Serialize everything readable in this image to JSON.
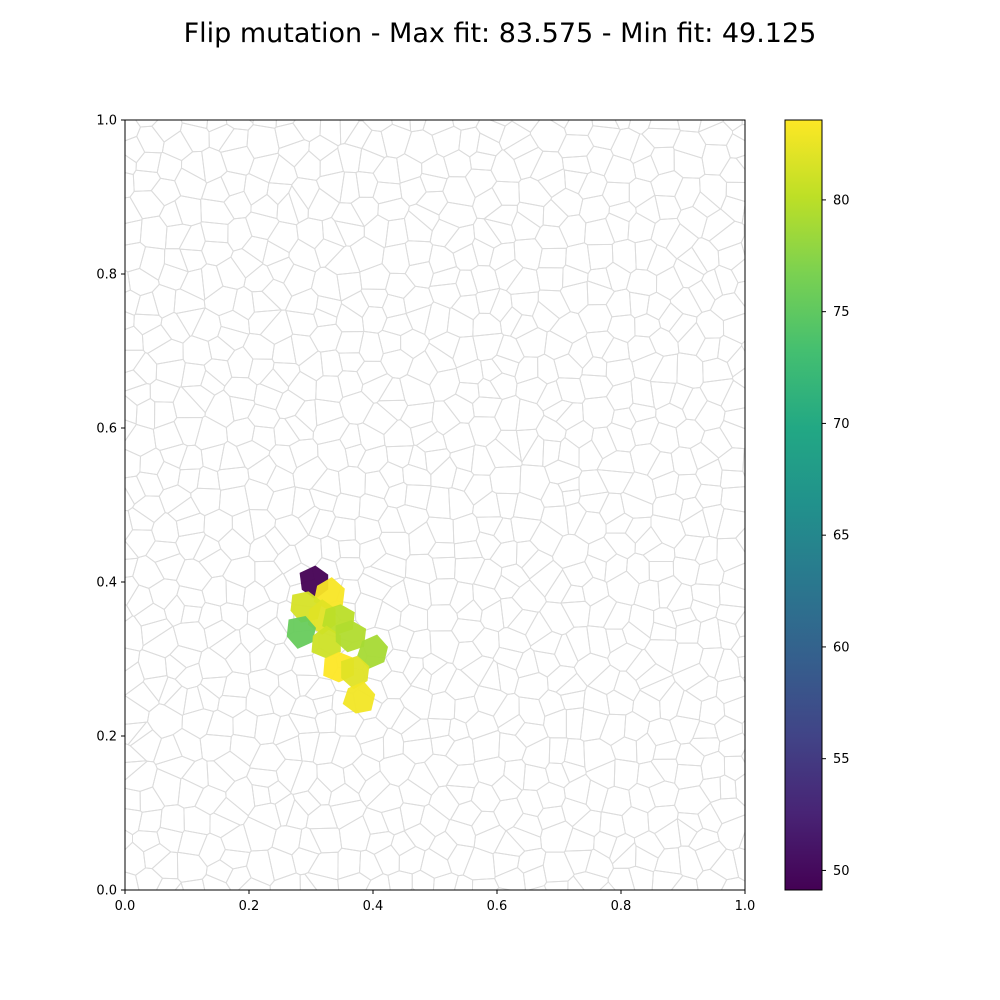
{
  "chart_data": {
    "type": "heatmap",
    "title": "Flip mutation - Max fit: 83.575 - Min fit: 49.125",
    "xlabel": "",
    "ylabel": "",
    "xlim": [
      0,
      1
    ],
    "ylim": [
      0,
      1
    ],
    "x_ticks": [
      "0.0",
      "0.2",
      "0.4",
      "0.6",
      "0.8",
      "1.0"
    ],
    "y_ticks": [
      "0.0",
      "0.2",
      "0.4",
      "0.6",
      "0.8",
      "1.0"
    ],
    "grid": false,
    "background_cells": "voronoi tessellation, light gray edges",
    "colormap": "viridis",
    "colorbar": {
      "range": [
        49.125,
        83.575
      ],
      "ticks": [
        "50",
        "55",
        "60",
        "65",
        "70",
        "75",
        "80"
      ],
      "placement": "right"
    },
    "cells": [
      {
        "x": 0.307,
        "y": 0.4,
        "value": 49.125
      },
      {
        "x": 0.33,
        "y": 0.383,
        "value": 83.3
      },
      {
        "x": 0.29,
        "y": 0.368,
        "value": 81.5
      },
      {
        "x": 0.318,
        "y": 0.355,
        "value": 82.0
      },
      {
        "x": 0.345,
        "y": 0.352,
        "value": 80.0
      },
      {
        "x": 0.285,
        "y": 0.335,
        "value": 75.5
      },
      {
        "x": 0.325,
        "y": 0.32,
        "value": 81.0
      },
      {
        "x": 0.362,
        "y": 0.33,
        "value": 79.5
      },
      {
        "x": 0.4,
        "y": 0.31,
        "value": 79.0
      },
      {
        "x": 0.345,
        "y": 0.29,
        "value": 83.575
      },
      {
        "x": 0.372,
        "y": 0.283,
        "value": 82.0
      },
      {
        "x": 0.378,
        "y": 0.248,
        "value": 83.0
      }
    ]
  }
}
